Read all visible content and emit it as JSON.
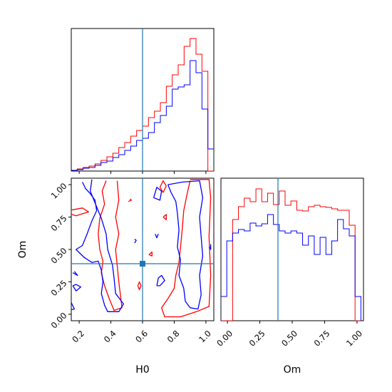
{
  "figure_type": "corner plot",
  "colors": {
    "red": "#ff0000",
    "blue": "#0000ff",
    "truth": "#1f77b4",
    "axes": "#000000"
  },
  "chart_data": [
    {
      "panel": "H0 marginal",
      "type": "histogram",
      "xlim": [
        0.15,
        1.05
      ],
      "truth": 0.6,
      "grid": false,
      "series": [
        {
          "color": "red",
          "x": [
            0.15,
            0.1875,
            0.225,
            0.2625,
            0.3,
            0.3375,
            0.375,
            0.4125,
            0.45,
            0.4875,
            0.525,
            0.5625,
            0.6,
            0.6375,
            0.675,
            0.7125,
            0.75,
            0.7875,
            0.825,
            0.8625,
            0.9,
            0.9375,
            0.975,
            1.0125
          ],
          "values": [
            0.5,
            1.5,
            2.5,
            3.5,
            5.0,
            7.5,
            10.0,
            12.5,
            16.5,
            20.0,
            24.5,
            28.5,
            31.5,
            37.5,
            42.0,
            48.0,
            59.5,
            67.5,
            74.5,
            87.5,
            93.0,
            82.0,
            70.0,
            0
          ]
        },
        {
          "color": "blue",
          "x": [
            0.15,
            0.1875,
            0.225,
            0.2625,
            0.3,
            0.3375,
            0.375,
            0.4125,
            0.45,
            0.4875,
            0.525,
            0.5625,
            0.6,
            0.6375,
            0.675,
            0.7125,
            0.75,
            0.7875,
            0.825,
            0.8625,
            0.9,
            0.9375,
            0.975,
            1.0125
          ],
          "values": [
            0.5,
            1.0,
            2.0,
            2.5,
            4.0,
            6.0,
            7.0,
            9.5,
            11.5,
            14.5,
            17.5,
            21.5,
            23.0,
            27.0,
            34.0,
            39.0,
            45.5,
            57.5,
            59.0,
            60.5,
            77.5,
            69.0,
            43.5,
            15.5
          ]
        }
      ]
    },
    {
      "panel": "H0 vs Om",
      "type": "contour",
      "xlabel": "H0",
      "ylabel": "Om",
      "xlim": [
        0.15,
        1.05
      ],
      "ylim": [
        -0.05,
        1.05
      ],
      "xticks": [
        "0.2",
        "0.4",
        "0.6",
        "0.8",
        "1.0"
      ],
      "yticks": [
        "0.00",
        "0.25",
        "0.50",
        "0.75",
        "1.00"
      ],
      "truth": {
        "H0": 0.6,
        "Om": 0.39
      },
      "series": [
        {
          "color": "red",
          "contours": [
            [
              [
                0.37,
                1.03
              ],
              [
                0.345,
                0.95
              ],
              [
                0.36,
                0.85
              ],
              [
                0.33,
                0.74
              ],
              [
                0.32,
                0.62
              ],
              [
                0.33,
                0.5
              ],
              [
                0.35,
                0.41
              ],
              [
                0.34,
                0.32
              ],
              [
                0.36,
                0.22
              ],
              [
                0.39,
                0.12
              ],
              [
                0.42,
                0.03
              ],
              [
                0.47,
                0.05
              ],
              [
                0.46,
                0.15
              ],
              [
                0.45,
                0.25
              ],
              [
                0.44,
                0.38
              ],
              [
                0.43,
                0.5
              ],
              [
                0.45,
                0.62
              ],
              [
                0.43,
                0.75
              ],
              [
                0.45,
                0.88
              ],
              [
                0.44,
                1.03
              ]
            ],
            [
              [
                0.9,
                1.03
              ],
              [
                0.88,
                0.92
              ],
              [
                0.86,
                0.8
              ],
              [
                0.85,
                0.65
              ],
              [
                0.84,
                0.52
              ],
              [
                0.83,
                0.4
              ],
              [
                0.81,
                0.3
              ],
              [
                0.8,
                0.2
              ],
              [
                0.76,
                0.12
              ],
              [
                0.72,
                0.05
              ],
              [
                0.74,
                -0.02
              ],
              [
                0.84,
                -0.02
              ],
              [
                0.94,
                0.02
              ],
              [
                1.02,
                0.06
              ],
              [
                1.03,
                0.3
              ],
              [
                1.02,
                0.6
              ],
              [
                1.03,
                0.9
              ],
              [
                1.02,
                1.04
              ],
              [
                0.9,
                1.04
              ]
            ],
            [
              [
                0.71,
                0.98
              ],
              [
                0.73,
                0.94
              ],
              [
                0.75,
                0.99
              ],
              [
                0.73,
                1.03
              ],
              [
                0.71,
                0.98
              ]
            ],
            [
              [
                0.13,
                0.78
              ],
              [
                0.18,
                0.76
              ],
              [
                0.26,
                0.79
              ],
              [
                0.22,
                0.82
              ],
              [
                0.13,
                0.8
              ]
            ],
            [
              [
                0.51,
                0.87
              ],
              [
                0.53,
                0.88
              ],
              [
                0.52,
                0.89
              ]
            ],
            [
              [
                0.73,
                0.75
              ],
              [
                0.75,
                0.73
              ],
              [
                0.75,
                0.77
              ],
              [
                0.73,
                0.75
              ]
            ],
            [
              [
                0.64,
                0.46
              ],
              [
                0.66,
                0.45
              ],
              [
                0.66,
                0.48
              ],
              [
                0.64,
                0.46
              ]
            ],
            [
              [
                0.57,
                0.22
              ],
              [
                0.58,
                0.19
              ],
              [
                0.59,
                0.22
              ],
              [
                0.58,
                0.25
              ],
              [
                0.57,
                0.22
              ]
            ]
          ]
        },
        {
          "color": "blue",
          "contours": [
            [
              [
                0.22,
                1.02
              ],
              [
                0.24,
                0.97
              ],
              [
                0.27,
                0.93
              ],
              [
                0.3,
                0.88
              ],
              [
                0.31,
                0.8
              ],
              [
                0.28,
                0.72
              ],
              [
                0.25,
                0.62
              ],
              [
                0.22,
                0.53
              ],
              [
                0.18,
                0.5
              ],
              [
                0.23,
                0.44
              ],
              [
                0.28,
                0.4
              ],
              [
                0.32,
                0.41
              ],
              [
                0.34,
                0.34
              ],
              [
                0.35,
                0.25
              ],
              [
                0.34,
                0.16
              ],
              [
                0.36,
                0.07
              ],
              [
                0.38,
                0.02
              ],
              [
                0.45,
                0.02
              ],
              [
                0.48,
                0.08
              ],
              [
                0.43,
                0.16
              ],
              [
                0.42,
                0.28
              ],
              [
                0.41,
                0.38
              ],
              [
                0.38,
                0.5
              ],
              [
                0.37,
                0.62
              ],
              [
                0.34,
                0.74
              ],
              [
                0.3,
                0.86
              ],
              [
                0.27,
                0.95
              ],
              [
                0.28,
                1.04
              ]
            ],
            [
              [
                0.76,
                1.0
              ],
              [
                0.78,
                0.94
              ],
              [
                0.81,
                0.87
              ],
              [
                0.82,
                0.78
              ],
              [
                0.83,
                0.65
              ],
              [
                0.82,
                0.52
              ],
              [
                0.84,
                0.42
              ],
              [
                0.83,
                0.3
              ],
              [
                0.86,
                0.2
              ],
              [
                0.87,
                0.1
              ],
              [
                0.9,
                0.05
              ],
              [
                0.95,
                0.04
              ],
              [
                0.97,
                0.15
              ],
              [
                0.96,
                0.3
              ],
              [
                0.98,
                0.45
              ],
              [
                0.97,
                0.6
              ],
              [
                0.96,
                0.75
              ],
              [
                0.98,
                0.9
              ],
              [
                0.96,
                1.03
              ],
              [
                0.85,
                1.02
              ],
              [
                0.76,
                1.0
              ]
            ],
            [
              [
                0.15,
                0.09
              ],
              [
                0.17,
                0.04
              ],
              [
                0.13,
                0.03
              ]
            ],
            [
              [
                0.16,
                0.22
              ],
              [
                0.18,
                0.18
              ],
              [
                0.21,
                0.21
              ],
              [
                0.18,
                0.23
              ],
              [
                0.16,
                0.22
              ]
            ],
            [
              [
                0.16,
                0.32
              ],
              [
                0.19,
                0.3
              ],
              [
                0.17,
                0.33
              ]
            ],
            [
              [
                0.68,
                0.62
              ],
              [
                0.69,
                0.59
              ],
              [
                0.7,
                0.62
              ]
            ],
            [
              [
                0.55,
                0.55
              ],
              [
                0.56,
                0.57
              ],
              [
                0.55,
                0.58
              ]
            ],
            [
              [
                0.67,
                0.9
              ],
              [
                0.71,
                0.88
              ],
              [
                0.72,
                0.95
              ],
              [
                0.69,
                0.98
              ],
              [
                0.67,
                0.9
              ]
            ],
            [
              [
                0.69,
                0.22
              ],
              [
                0.7,
                0.28
              ],
              [
                0.72,
                0.3
              ],
              [
                0.74,
                0.26
              ],
              [
                0.71,
                0.22
              ],
              [
                0.69,
                0.22
              ]
            ],
            [
              [
                1.02,
                0.52
              ],
              [
                1.03,
                0.5
              ],
              [
                1.03,
                0.54
              ]
            ]
          ]
        }
      ]
    },
    {
      "panel": "Om marginal",
      "type": "histogram",
      "xlabel": "Om",
      "xlim": [
        -0.05,
        1.05
      ],
      "xticks": [
        "0.00",
        "0.25",
        "0.50",
        "0.75",
        "1.00"
      ],
      "truth": 0.39,
      "grid": false,
      "series": [
        {
          "color": "red",
          "x": [
            -0.05,
            -0.005,
            0.04,
            0.085,
            0.13,
            0.175,
            0.22,
            0.265,
            0.31,
            0.355,
            0.4,
            0.445,
            0.49,
            0.535,
            0.58,
            0.625,
            0.67,
            0.715,
            0.76,
            0.805,
            0.85,
            0.895,
            0.94,
            0.985
          ],
          "values": [
            0,
            0,
            71.0,
            80.0,
            86.0,
            83.5,
            92.5,
            83.5,
            89.5,
            81.5,
            91.0,
            81.0,
            84.0,
            77.5,
            77.0,
            80.0,
            81.0,
            80.0,
            79.5,
            78.5,
            77.5,
            77.5,
            67.0,
            0
          ]
        },
        {
          "color": "blue",
          "x": [
            -0.05,
            -0.005,
            0.04,
            0.085,
            0.13,
            0.175,
            0.22,
            0.265,
            0.31,
            0.355,
            0.4,
            0.445,
            0.49,
            0.535,
            0.58,
            0.625,
            0.67,
            0.715,
            0.76,
            0.805,
            0.85,
            0.895,
            0.94,
            0.985
          ],
          "values": [
            17.0,
            56.0,
            61.5,
            64.0,
            63.0,
            68.5,
            66.5,
            68.0,
            74.5,
            67.5,
            63.0,
            61.5,
            63.0,
            61.5,
            53.0,
            59.5,
            46.5,
            58.5,
            46.5,
            56.0,
            71.0,
            64.5,
            59.5,
            17.0
          ]
        }
      ]
    }
  ]
}
